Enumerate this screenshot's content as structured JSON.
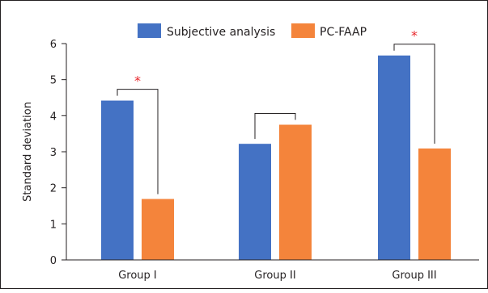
{
  "chart_data": {
    "type": "bar",
    "categories": [
      "Group I",
      "Group II",
      "Group III"
    ],
    "series": [
      {
        "name": "Subjective analysis",
        "color": "#4472c4",
        "values": [
          4.42,
          3.22,
          5.67
        ]
      },
      {
        "name": "PC-FAAP",
        "color": "#f4843b",
        "values": [
          1.69,
          3.75,
          3.09
        ]
      }
    ],
    "ylabel": "Standard deviation",
    "xlabel": "",
    "ylim": [
      0,
      6
    ],
    "yticks": [
      "0",
      "1",
      "2",
      "3",
      "4",
      "5",
      "6"
    ],
    "grid": false,
    "legend_position": "top",
    "significance": [
      {
        "category": "Group I",
        "marker": "*"
      },
      {
        "category": "Group II",
        "marker": ""
      },
      {
        "category": "Group III",
        "marker": "*"
      }
    ]
  }
}
